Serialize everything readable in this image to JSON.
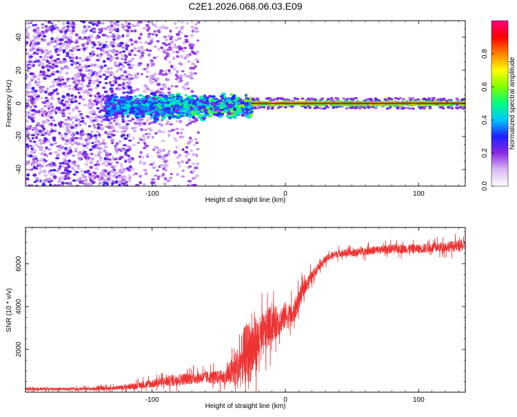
{
  "figure": {
    "title": "C2E1.2026.068.06.03.E09"
  },
  "chart_data": [
    {
      "type": "heatmap",
      "title": "C2E1.2026.068.06.03.E09",
      "xlabel": "Height of straight line (km)",
      "ylabel": "Frequency (Hz)",
      "xlim": [
        -195,
        135
      ],
      "ylim": [
        -50,
        50
      ],
      "xticks": [
        -100,
        0,
        100
      ],
      "yticks": [
        -40,
        -20,
        0,
        20,
        40
      ],
      "xtick_labels": [
        "-100",
        "0",
        "100"
      ],
      "ytick_labels": [
        "-40",
        "-20",
        "0",
        "20",
        "40"
      ],
      "colorbar": {
        "label": "Normalized spectral amplitude",
        "range": [
          0,
          1
        ],
        "ticks": [
          0.0,
          0.2,
          0.4,
          0.6,
          0.8
        ],
        "tick_labels": [
          "0.0",
          "0.2",
          "0.4",
          "0.6",
          "0.8"
        ],
        "colormap": [
          "#ffffff",
          "#d9b8f5",
          "#8a2be2",
          "#1e1eff",
          "#00c8ff",
          "#00ff80",
          "#80ff00",
          "#ffff00",
          "#ff8000",
          "#ff0000",
          "#ff0080"
        ]
      },
      "regions": [
        {
          "name": "broadband noise",
          "x_range": [
            -195,
            -115
          ],
          "freq_spread": 50,
          "amplitude": 0.15
        },
        {
          "name": "sparse noise",
          "x_range": [
            -115,
            -65
          ],
          "freq_spread": 50,
          "amplitude": 0.05
        },
        {
          "name": "band onset",
          "x_range": [
            -135,
            -25
          ],
          "freq_center": -2,
          "freq_width": 6,
          "amplitude": 0.45
        },
        {
          "name": "carrier",
          "x_range": [
            -25,
            135
          ],
          "freq_center": 0,
          "freq_width": 2,
          "amplitude": 1.0
        }
      ]
    },
    {
      "type": "line",
      "xlabel": "Height of straight line (km)",
      "ylabel": "SNR (10 * v/v)",
      "xlim": [
        -195,
        135
      ],
      "ylim": [
        0,
        7700
      ],
      "xticks": [
        -100,
        0,
        100
      ],
      "yticks": [
        2000,
        4000,
        6000
      ],
      "xtick_labels": [
        "-100",
        "0",
        "100"
      ],
      "ytick_labels": [
        "2000",
        "4000",
        "6000"
      ],
      "color": "#ee3333",
      "envelope": {
        "x": [
          -195,
          -150,
          -125,
          -100,
          -80,
          -60,
          -45,
          -35,
          -30,
          -25,
          -20,
          -15,
          -10,
          -5,
          0,
          5,
          10,
          15,
          20,
          25,
          30,
          35,
          40,
          50,
          60,
          80,
          100,
          120,
          135
        ],
        "mean": [
          150,
          150,
          200,
          400,
          600,
          700,
          700,
          1200,
          1800,
          2000,
          2400,
          2800,
          3200,
          3300,
          3600,
          3500,
          4300,
          5000,
          5400,
          5900,
          6200,
          6400,
          6500,
          6500,
          6600,
          6700,
          6700,
          6800,
          6850
        ],
        "noise": [
          100,
          100,
          150,
          300,
          400,
          400,
          500,
          1500,
          2000,
          2200,
          1600,
          1400,
          1200,
          1000,
          900,
          800,
          700,
          500,
          400,
          300,
          250,
          250,
          250,
          250,
          280,
          300,
          320,
          350,
          380
        ]
      }
    }
  ]
}
